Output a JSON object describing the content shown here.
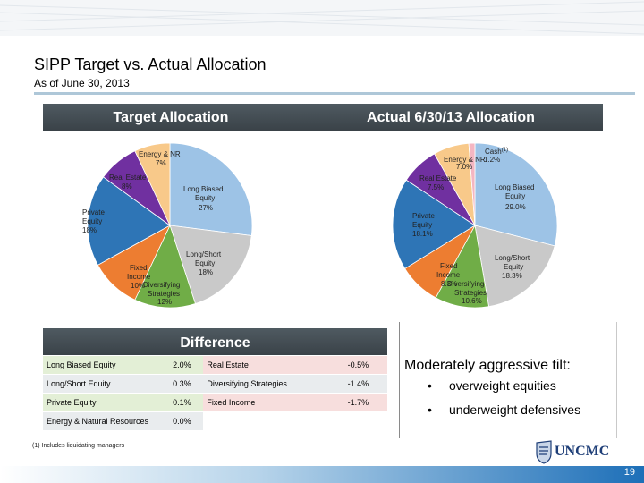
{
  "header": {
    "title": "SIPP Target vs. Actual Allocation",
    "subtitle": "As of June 30, 2013"
  },
  "chart_data": [
    {
      "type": "pie",
      "title": "Target Allocation",
      "slices": [
        {
          "name": "Long Biased Equity",
          "value": 27,
          "label": "Long Biased Equity",
          "pct": "27%",
          "color": "#9dc3e6"
        },
        {
          "name": "Long/Short Equity",
          "value": 18,
          "label": "Long/Short Equity",
          "pct": "18%",
          "color": "#c9c9c9"
        },
        {
          "name": "Diversifying Strategies",
          "value": 12,
          "label": "Diversifying Strategies",
          "pct": "12%",
          "color": "#70ad47"
        },
        {
          "name": "Fixed Income",
          "value": 10,
          "label": "Fixed Income",
          "pct": "10%",
          "color": "#ed7d31"
        },
        {
          "name": "Private Equity",
          "value": 18,
          "label": "Private Equity",
          "pct": "18%",
          "color": "#2e75b6"
        },
        {
          "name": "Real Estate",
          "value": 8,
          "label": "Real Estate",
          "pct": "8%",
          "color": "#7030a0"
        },
        {
          "name": "Energy & NR",
          "value": 7,
          "label": "Energy & NR",
          "pct": "7%",
          "color": "#f8c98a"
        }
      ]
    },
    {
      "type": "pie",
      "title": "Actual 6/30/13 Allocation",
      "slices": [
        {
          "name": "Long Biased Equity",
          "value": 29.0,
          "label": "Long Biased Equity",
          "pct": "29.0%",
          "color": "#9dc3e6"
        },
        {
          "name": "Long/Short Equity",
          "value": 18.3,
          "label": "Long/Short Equity",
          "pct": "18.3%",
          "color": "#c9c9c9"
        },
        {
          "name": "Diversifying Strategies",
          "value": 10.6,
          "label": "Diversifying Strategies",
          "pct": "10.6%",
          "color": "#70ad47"
        },
        {
          "name": "Fixed Income",
          "value": 8.3,
          "label": "Fixed Income",
          "pct": "8.3%",
          "color": "#ed7d31"
        },
        {
          "name": "Private Equity",
          "value": 18.1,
          "label": "Private Equity",
          "pct": "18.1%",
          "color": "#2e75b6"
        },
        {
          "name": "Real Estate",
          "value": 7.5,
          "label": "Real Estate",
          "pct": "7.5%",
          "color": "#7030a0"
        },
        {
          "name": "Energy & NR",
          "value": 7.0,
          "label": "Energy & NR",
          "pct": "7.0%",
          "color": "#f8c98a"
        },
        {
          "name": "Cash",
          "value": 1.2,
          "label": "Cash",
          "pct": "1.2%",
          "color": "#f4b6c2",
          "sup": "(1)"
        }
      ]
    }
  ],
  "difference": {
    "title": "Difference",
    "rows": [
      [
        "Long Biased Equity",
        "2.0%",
        "Real Estate",
        "-0.5%"
      ],
      [
        "Long/Short Equity",
        "0.3%",
        "Diversifying Strategies",
        "-1.4%"
      ],
      [
        "Private Equity",
        "0.1%",
        "Fixed Income",
        "-1.7%"
      ],
      [
        "Energy & Natural Resources",
        "0.0%",
        "",
        ""
      ]
    ]
  },
  "tilt": {
    "heading": "Moderately aggressive tilt:",
    "bullet_symbol": "•",
    "bullets": [
      "overweight equities",
      "underweight defensives"
    ]
  },
  "footnote": "(1) Includes liquidating managers",
  "logo": "UNCMC",
  "page_number": "19"
}
